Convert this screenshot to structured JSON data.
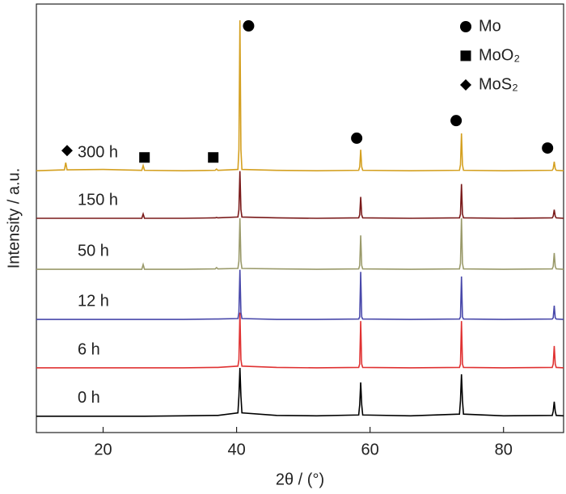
{
  "chart_data": {
    "type": "line",
    "x_label": "2θ / (°)",
    "y_label": "Intensity / a.u.",
    "xlim": [
      10,
      89
    ],
    "ylim": [
      0,
      100
    ],
    "xticks": [
      20,
      40,
      60,
      80
    ],
    "legend": "upper right",
    "x": [
      10,
      14.2,
      14.4,
      14.6,
      20,
      25.8,
      26,
      26.2,
      32,
      36.8,
      37,
      37.2,
      40.2,
      40.35,
      40.5,
      40.65,
      40.8,
      46,
      52,
      58.3,
      58.45,
      58.6,
      58.75,
      58.9,
      66,
      73.4,
      73.55,
      73.7,
      73.85,
      74,
      80,
      87.3,
      87.45,
      87.6,
      87.75,
      87.9,
      89
    ],
    "series": [
      {
        "name": "0 h",
        "color": "#000000",
        "values": [
          3.8,
          3.8,
          3.8,
          3.8,
          3.8,
          3.8,
          3.8,
          3.8,
          3.9,
          4,
          4,
          4,
          4.6,
          8.5,
          15.1,
          8.5,
          4.6,
          4,
          3.9,
          4.1,
          6.5,
          11.7,
          6.5,
          4.1,
          3.9,
          4.3,
          7.5,
          13.6,
          7.5,
          4.3,
          3.9,
          4,
          5,
          7.2,
          5,
          4,
          3.9
        ]
      },
      {
        "name": "6 h",
        "color": "#e03232",
        "values": [
          15.1,
          15.1,
          15.1,
          15.1,
          15.1,
          15.1,
          15.1,
          15.1,
          15.1,
          15.2,
          15.2,
          15.2,
          15.5,
          17,
          28,
          17,
          15.5,
          15.2,
          15.1,
          15.2,
          16,
          26,
          16,
          15.2,
          15.1,
          15.2,
          16,
          26,
          16,
          15.2,
          15.1,
          15.2,
          16,
          20.2,
          16,
          15.2,
          15.1
        ]
      },
      {
        "name": "12 h",
        "color": "#4848aa",
        "values": [
          26.4,
          26.4,
          26.4,
          26.4,
          26.4,
          26.4,
          26.4,
          26.4,
          26.4,
          26.5,
          26.5,
          26.5,
          26.6,
          28,
          38,
          28,
          26.6,
          26.4,
          26.4,
          26.5,
          27,
          37.5,
          27,
          26.5,
          26.4,
          26.5,
          27,
          36.4,
          27,
          26.5,
          26.4,
          26.5,
          26.8,
          29.6,
          26.8,
          26.5,
          26.4
        ]
      },
      {
        "name": "50 h",
        "color": "#9a9a6a",
        "values": [
          38.1,
          38.1,
          38.1,
          38.1,
          38.1,
          38.1,
          39.2,
          38.1,
          38.1,
          38.2,
          38.5,
          38.2,
          38.3,
          40,
          50,
          40,
          38.3,
          38.2,
          38.1,
          38.2,
          39,
          46,
          39,
          38.2,
          38.1,
          38.2,
          39.5,
          50,
          39.5,
          38.2,
          38.1,
          38.2,
          38.8,
          41.9,
          38.8,
          38.2,
          38.1
        ]
      },
      {
        "name": "150 h",
        "color": "#7a1a1a",
        "values": [
          50,
          50,
          50,
          50,
          50,
          50,
          51,
          50,
          50,
          50.1,
          50.2,
          50.1,
          50.3,
          52,
          61,
          52,
          50.3,
          50.1,
          50,
          50.1,
          50.8,
          55,
          50.8,
          50.1,
          50,
          50.1,
          51,
          58,
          51,
          50.1,
          50,
          50.1,
          50.5,
          52,
          50.5,
          50.1,
          50
        ]
      },
      {
        "name": "300 h",
        "color": "#d4a020",
        "values": [
          61.1,
          61.3,
          63,
          61.3,
          61.4,
          61.2,
          62.3,
          61.2,
          61.1,
          61.2,
          61.5,
          61.2,
          61.4,
          66,
          96.2,
          66,
          61.4,
          61.2,
          61.1,
          61.2,
          62,
          66,
          62,
          61.2,
          61.1,
          61.2,
          62.5,
          69.8,
          62.5,
          61.2,
          61.1,
          61.2,
          61.6,
          63.2,
          61.6,
          61.2,
          61.1
        ]
      }
    ],
    "phases": [
      {
        "name": "Mo",
        "symbol": "circle",
        "markers": [
          {
            "x": 41.8,
            "y": 94.9
          },
          {
            "x": 58.0,
            "y": 68.7
          },
          {
            "x": 72.9,
            "y": 72.8
          },
          {
            "x": 86.6,
            "y": 66.4
          }
        ]
      },
      {
        "name": "MoO₂",
        "symbol": "square",
        "markers": [
          {
            "x": 26.2,
            "y": 64.2
          },
          {
            "x": 36.5,
            "y": 64.2
          }
        ]
      },
      {
        "name": "MoS₂",
        "symbol": "diamond",
        "markers": [
          {
            "x": 14.6,
            "y": 65.8
          }
        ]
      }
    ]
  }
}
